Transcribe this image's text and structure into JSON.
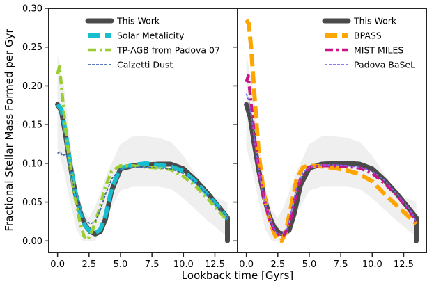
{
  "chart_data": {
    "type": "line",
    "xlabel": "Lookback time [Gyrs]",
    "ylabel": "Fractional Stellar Mass Formed per Gyr",
    "xlim": [
      -0.7,
      14.3
    ],
    "ylim": [
      -0.015,
      0.3
    ],
    "xticks": [
      0.0,
      2.5,
      5.0,
      7.5,
      10.0,
      12.5
    ],
    "xtick_labels": [
      "0.0",
      "2.5",
      "5.0",
      "7.5",
      "10.0",
      "12.5"
    ],
    "yticks": [
      0.0,
      0.05,
      0.1,
      0.15,
      0.2,
      0.25,
      0.3
    ],
    "ytick_labels": [
      "0.00",
      "0.05",
      "0.10",
      "0.15",
      "0.20",
      "0.25",
      "0.30"
    ],
    "panels": [
      {
        "name": "left",
        "band": {
          "x": [
            0.0,
            0.5,
            1.0,
            1.5,
            2.0,
            2.5,
            3.0,
            4.0,
            5.0,
            6.0,
            7.0,
            8.0,
            9.0,
            10.0,
            11.0,
            12.0,
            13.5
          ],
          "upper": [
            0.24,
            0.2,
            0.13,
            0.07,
            0.04,
            0.03,
            0.045,
            0.09,
            0.125,
            0.135,
            0.135,
            0.133,
            0.128,
            0.11,
            0.085,
            0.06,
            0.05
          ],
          "lower": [
            0.12,
            0.09,
            0.05,
            0.015,
            0.0,
            0.0,
            0.0,
            0.035,
            0.065,
            0.07,
            0.07,
            0.07,
            0.067,
            0.055,
            0.04,
            0.025,
            0.005
          ]
        },
        "series": [
          {
            "name": "This Work",
            "color": "#4a4a4a",
            "style": "solid",
            "x": [
              0.0,
              0.3,
              0.6,
              1.0,
              1.4,
              1.8,
              2.2,
              2.6,
              3.0,
              3.4,
              3.8,
              4.3,
              5.0,
              6.0,
              7.0,
              8.0,
              9.0,
              10.0,
              11.0,
              12.0,
              13.0,
              13.5,
              13.5
            ],
            "y": [
              0.176,
              0.168,
              0.14,
              0.098,
              0.062,
              0.037,
              0.02,
              0.012,
              0.009,
              0.012,
              0.028,
              0.065,
              0.093,
              0.097,
              0.098,
              0.099,
              0.099,
              0.093,
              0.078,
              0.06,
              0.04,
              0.03,
              0.0
            ]
          },
          {
            "name": "Solar Metalicity",
            "color": "#17becf",
            "style": "dashed",
            "x": [
              0.0,
              0.3,
              0.6,
              1.0,
              1.4,
              1.8,
              2.2,
              2.6,
              3.0,
              3.4,
              3.8,
              4.3,
              5.0,
              6.0,
              7.0,
              8.0,
              9.0,
              10.0,
              11.0,
              12.0,
              13.0,
              13.5
            ],
            "y": [
              0.176,
              0.17,
              0.145,
              0.1,
              0.063,
              0.036,
              0.019,
              0.012,
              0.01,
              0.015,
              0.032,
              0.068,
              0.094,
              0.098,
              0.1,
              0.098,
              0.096,
              0.09,
              0.076,
              0.058,
              0.04,
              0.028
            ]
          },
          {
            "name": "TP-AGB from Padova 07",
            "color": "#9acd32",
            "style": "dashdot",
            "x": [
              0.0,
              0.15,
              0.3,
              0.6,
              1.0,
              1.4,
              1.8,
              2.1,
              2.4,
              2.8,
              3.3,
              3.8,
              4.3,
              5.0,
              6.0,
              7.0,
              8.0,
              9.0,
              10.0,
              11.0,
              12.0,
              13.0,
              13.5
            ],
            "y": [
              0.215,
              0.225,
              0.2,
              0.15,
              0.095,
              0.055,
              0.022,
              0.006,
              0.002,
              0.015,
              0.04,
              0.07,
              0.09,
              0.097,
              0.097,
              0.095,
              0.094,
              0.092,
              0.083,
              0.07,
              0.053,
              0.035,
              0.026
            ]
          },
          {
            "name": "Calzetti Dust",
            "color": "#4169aa",
            "style": "densedash",
            "x": [
              0.0,
              0.2,
              0.4,
              0.7,
              1.0,
              1.4,
              1.8,
              2.2,
              2.6,
              3.0,
              3.4,
              3.8,
              4.3,
              5.0,
              6.0,
              7.0,
              8.0,
              9.0,
              10.0,
              11.0,
              12.0,
              13.0,
              13.5
            ],
            "y": [
              0.113,
              0.115,
              0.11,
              0.112,
              0.09,
              0.063,
              0.04,
              0.027,
              0.022,
              0.025,
              0.04,
              0.06,
              0.08,
              0.093,
              0.095,
              0.095,
              0.094,
              0.093,
              0.087,
              0.075,
              0.058,
              0.038,
              0.03
            ]
          }
        ],
        "legend": {
          "position": "top-center",
          "entries": [
            "This Work",
            "Solar Metalicity",
            "TP-AGB from Padova 07",
            "Calzetti Dust"
          ]
        }
      },
      {
        "name": "right",
        "band": {
          "x": [
            0.0,
            0.5,
            1.0,
            1.5,
            2.0,
            2.5,
            3.0,
            4.0,
            5.0,
            6.0,
            7.0,
            8.0,
            9.0,
            10.0,
            11.0,
            12.0,
            13.5
          ],
          "upper": [
            0.24,
            0.2,
            0.13,
            0.07,
            0.04,
            0.03,
            0.045,
            0.09,
            0.125,
            0.135,
            0.135,
            0.133,
            0.128,
            0.11,
            0.085,
            0.06,
            0.05
          ],
          "lower": [
            0.12,
            0.09,
            0.05,
            0.015,
            0.0,
            0.0,
            0.0,
            0.035,
            0.065,
            0.07,
            0.07,
            0.07,
            0.067,
            0.055,
            0.04,
            0.025,
            0.005
          ]
        },
        "series": [
          {
            "name": "This Work",
            "color": "#4a4a4a",
            "style": "solid",
            "x": [
              0.0,
              0.3,
              0.6,
              1.0,
              1.4,
              1.8,
              2.2,
              2.6,
              3.0,
              3.4,
              3.8,
              4.3,
              5.0,
              6.0,
              7.0,
              8.0,
              9.0,
              10.0,
              11.0,
              12.0,
              13.0,
              13.5,
              13.5
            ],
            "y": [
              0.176,
              0.16,
              0.128,
              0.09,
              0.058,
              0.033,
              0.018,
              0.01,
              0.009,
              0.014,
              0.035,
              0.072,
              0.094,
              0.099,
              0.1,
              0.1,
              0.099,
              0.093,
              0.078,
              0.06,
              0.04,
              0.03,
              0.0
            ]
          },
          {
            "name": "BPASS",
            "color": "#ffa500",
            "style": "dashed",
            "x": [
              0.0,
              0.2,
              0.4,
              0.7,
              1.0,
              1.4,
              1.8,
              2.2,
              2.5,
              2.8,
              3.1,
              3.5,
              4.0,
              4.5,
              5.0,
              6.0,
              7.0,
              8.0,
              9.0,
              10.0,
              11.0,
              12.0,
              13.0,
              13.5
            ],
            "y": [
              0.285,
              0.28,
              0.245,
              0.175,
              0.11,
              0.06,
              0.03,
              0.01,
              0.002,
              0.0,
              0.01,
              0.04,
              0.08,
              0.095,
              0.097,
              0.096,
              0.094,
              0.091,
              0.086,
              0.077,
              0.06,
              0.045,
              0.03,
              0.022
            ]
          },
          {
            "name": "MIST MILES",
            "color": "#c71585",
            "style": "dashdot",
            "x": [
              0.0,
              0.15,
              0.3,
              0.6,
              1.0,
              1.4,
              1.8,
              2.2,
              2.6,
              3.0,
              3.4,
              3.8,
              4.3,
              5.0,
              6.0,
              7.0,
              8.0,
              9.0,
              10.0,
              11.0,
              12.0,
              13.0,
              13.5
            ],
            "y": [
              0.205,
              0.213,
              0.19,
              0.14,
              0.09,
              0.055,
              0.03,
              0.015,
              0.008,
              0.008,
              0.02,
              0.05,
              0.08,
              0.095,
              0.097,
              0.097,
              0.096,
              0.094,
              0.087,
              0.074,
              0.058,
              0.038,
              0.025
            ]
          },
          {
            "name": "Padova BaSeL",
            "color": "#7b68ee",
            "style": "densedash",
            "x": [
              0.0,
              0.2,
              0.5,
              0.8,
              1.2,
              1.6,
              2.0,
              2.4,
              2.8,
              3.2,
              3.6,
              4.0,
              4.5,
              5.0,
              6.0,
              7.0,
              8.0,
              9.0,
              10.0,
              11.0,
              12.0,
              13.0,
              13.5
            ],
            "y": [
              0.19,
              0.18,
              0.15,
              0.11,
              0.07,
              0.042,
              0.022,
              0.01,
              0.008,
              0.015,
              0.04,
              0.07,
              0.088,
              0.095,
              0.098,
              0.098,
              0.097,
              0.095,
              0.09,
              0.078,
              0.06,
              0.04,
              0.025
            ]
          }
        ],
        "legend": {
          "position": "top-right",
          "entries": [
            "This Work",
            "BPASS",
            "MIST MILES",
            "Padova BaSeL"
          ]
        }
      }
    ]
  }
}
